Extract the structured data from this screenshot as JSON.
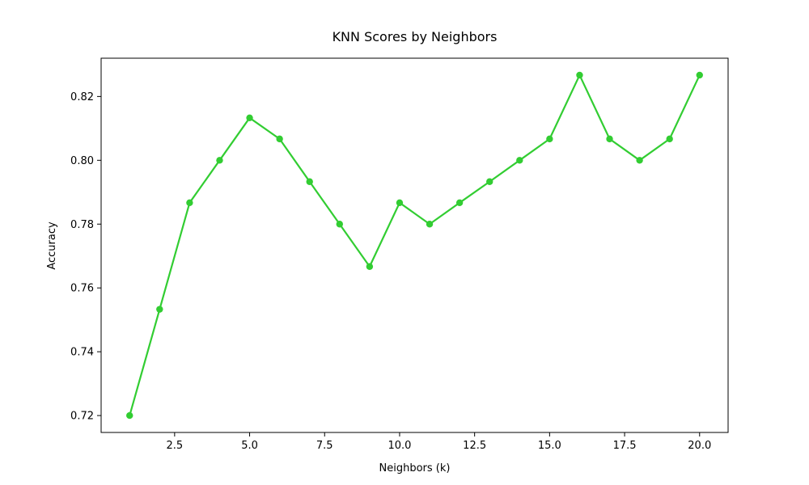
{
  "chart_data": {
    "type": "line",
    "title": "KNN Scores by Neighbors",
    "xlabel": "Neighbors (k)",
    "ylabel": "Accuracy",
    "xlim": [
      0.05,
      20.95
    ],
    "ylim": [
      0.7147,
      0.832
    ],
    "grid": false,
    "x_ticks": [
      2.5,
      5.0,
      7.5,
      10.0,
      12.5,
      15.0,
      17.5,
      20.0
    ],
    "x_tick_labels": [
      "2.5",
      "5.0",
      "7.5",
      "10.0",
      "12.5",
      "15.0",
      "17.5",
      "20.0"
    ],
    "y_ticks": [
      0.72,
      0.74,
      0.76,
      0.78,
      0.8,
      0.82
    ],
    "y_tick_labels": [
      "0.72",
      "0.74",
      "0.76",
      "0.78",
      "0.80",
      "0.82"
    ],
    "series": [
      {
        "color": "#32cd32",
        "marker": "circle",
        "x": [
          1,
          2,
          3,
          4,
          5,
          6,
          7,
          8,
          9,
          10,
          11,
          12,
          13,
          14,
          15,
          16,
          17,
          18,
          19,
          20
        ],
        "y": [
          0.72,
          0.7533,
          0.7867,
          0.8,
          0.8133,
          0.8067,
          0.7933,
          0.78,
          0.7667,
          0.7867,
          0.78,
          0.7867,
          0.7933,
          0.8,
          0.8067,
          0.8267,
          0.8067,
          0.8,
          0.8067,
          0.8267
        ]
      }
    ]
  }
}
